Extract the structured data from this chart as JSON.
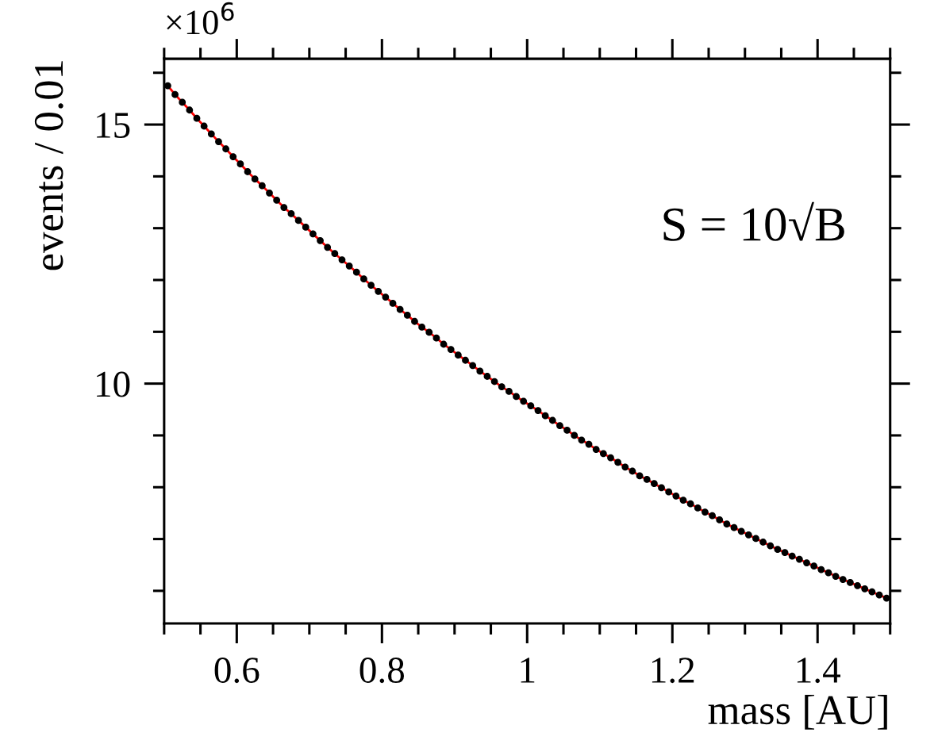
{
  "chart_data": {
    "type": "scatter",
    "xlabel": "mass [AU]",
    "ylabel": "events / 0.01",
    "x": [
      0.505,
      0.515,
      0.525,
      0.535,
      0.545,
      0.555,
      0.565,
      0.575,
      0.585,
      0.595,
      0.605,
      0.615,
      0.625,
      0.635,
      0.645,
      0.655,
      0.665,
      0.675,
      0.685,
      0.695,
      0.705,
      0.715,
      0.725,
      0.735,
      0.745,
      0.755,
      0.765,
      0.775,
      0.785,
      0.795,
      0.805,
      0.815,
      0.825,
      0.835,
      0.845,
      0.855,
      0.865,
      0.875,
      0.885,
      0.895,
      0.905,
      0.915,
      0.925,
      0.935,
      0.945,
      0.955,
      0.965,
      0.975,
      0.985,
      0.995,
      1.005,
      1.015,
      1.025,
      1.035,
      1.045,
      1.055,
      1.065,
      1.075,
      1.085,
      1.095,
      1.105,
      1.115,
      1.125,
      1.135,
      1.145,
      1.155,
      1.165,
      1.175,
      1.185,
      1.195,
      1.205,
      1.215,
      1.225,
      1.235,
      1.245,
      1.255,
      1.265,
      1.275,
      1.285,
      1.295,
      1.305,
      1.315,
      1.325,
      1.335,
      1.345,
      1.355,
      1.365,
      1.375,
      1.385,
      1.395,
      1.405,
      1.415,
      1.425,
      1.435,
      1.445,
      1.455,
      1.465,
      1.475,
      1.485,
      1.495
    ],
    "series": [
      {
        "type": "line",
        "color": "#ff0000",
        "line_style": "solid",
        "marker": "none",
        "values": [
          15.75,
          15.58,
          15.43,
          15.28,
          15.12,
          14.97,
          14.82,
          14.67,
          14.53,
          14.38,
          14.24,
          14.09,
          13.95,
          13.82,
          13.68,
          13.54,
          13.4,
          13.28,
          13.15,
          13.02,
          12.89,
          12.76,
          12.63,
          12.51,
          12.39,
          12.27,
          12.15,
          12.02,
          11.9,
          11.78,
          11.67,
          11.55,
          11.43,
          11.32,
          11.2,
          11.09,
          10.99,
          10.88,
          10.76,
          10.66,
          10.55,
          10.45,
          10.35,
          10.24,
          10.14,
          10.04,
          9.94,
          9.85,
          9.75,
          9.66,
          9.57,
          9.48,
          9.38,
          9.29,
          9.19,
          9.1,
          9.0,
          8.91,
          8.83,
          8.73,
          8.65,
          8.57,
          8.48,
          8.39,
          8.31,
          8.22,
          8.15,
          8.07,
          7.99,
          7.91,
          7.83,
          7.75,
          7.68,
          7.6,
          7.52,
          7.45,
          7.37,
          7.29,
          7.22,
          7.15,
          7.08,
          7.01,
          6.94,
          6.87,
          6.8,
          6.74,
          6.67,
          6.61,
          6.54,
          6.48,
          6.41,
          6.35,
          6.28,
          6.22,
          6.16,
          6.1,
          6.04,
          5.98,
          5.92,
          5.86
        ]
      },
      {
        "color": "#000000",
        "marker": "circle",
        "values": [
          15.75,
          15.58,
          15.43,
          15.28,
          15.12,
          14.97,
          14.82,
          14.67,
          14.53,
          14.38,
          14.24,
          14.09,
          13.95,
          13.82,
          13.68,
          13.54,
          13.4,
          13.28,
          13.15,
          13.02,
          12.89,
          12.76,
          12.63,
          12.51,
          12.39,
          12.27,
          12.15,
          12.02,
          11.9,
          11.78,
          11.67,
          11.55,
          11.43,
          11.32,
          11.2,
          11.09,
          10.99,
          10.88,
          10.76,
          10.66,
          10.55,
          10.45,
          10.35,
          10.24,
          10.14,
          10.04,
          9.94,
          9.85,
          9.75,
          9.66,
          9.57,
          9.48,
          9.38,
          9.29,
          9.19,
          9.1,
          9.0,
          8.91,
          8.83,
          8.73,
          8.65,
          8.57,
          8.48,
          8.39,
          8.31,
          8.22,
          8.15,
          8.07,
          7.99,
          7.91,
          7.83,
          7.75,
          7.68,
          7.6,
          7.52,
          7.45,
          7.37,
          7.29,
          7.22,
          7.15,
          7.08,
          7.01,
          6.94,
          6.87,
          6.8,
          6.74,
          6.67,
          6.61,
          6.54,
          6.48,
          6.41,
          6.35,
          6.28,
          6.22,
          6.16,
          6.1,
          6.04,
          5.98,
          5.92,
          5.86
        ]
      }
    ],
    "xlim": [
      0.5,
      1.5
    ],
    "xticks": [
      0.6,
      0.8,
      1,
      1.2,
      1.4
    ],
    "ylim": [
      5.37,
      16.27
    ],
    "yticks": [
      10,
      15
    ],
    "grid": false,
    "legend": false,
    "annotations": [
      "×10$^{6}$",
      "S = 10√B"
    ]
  }
}
